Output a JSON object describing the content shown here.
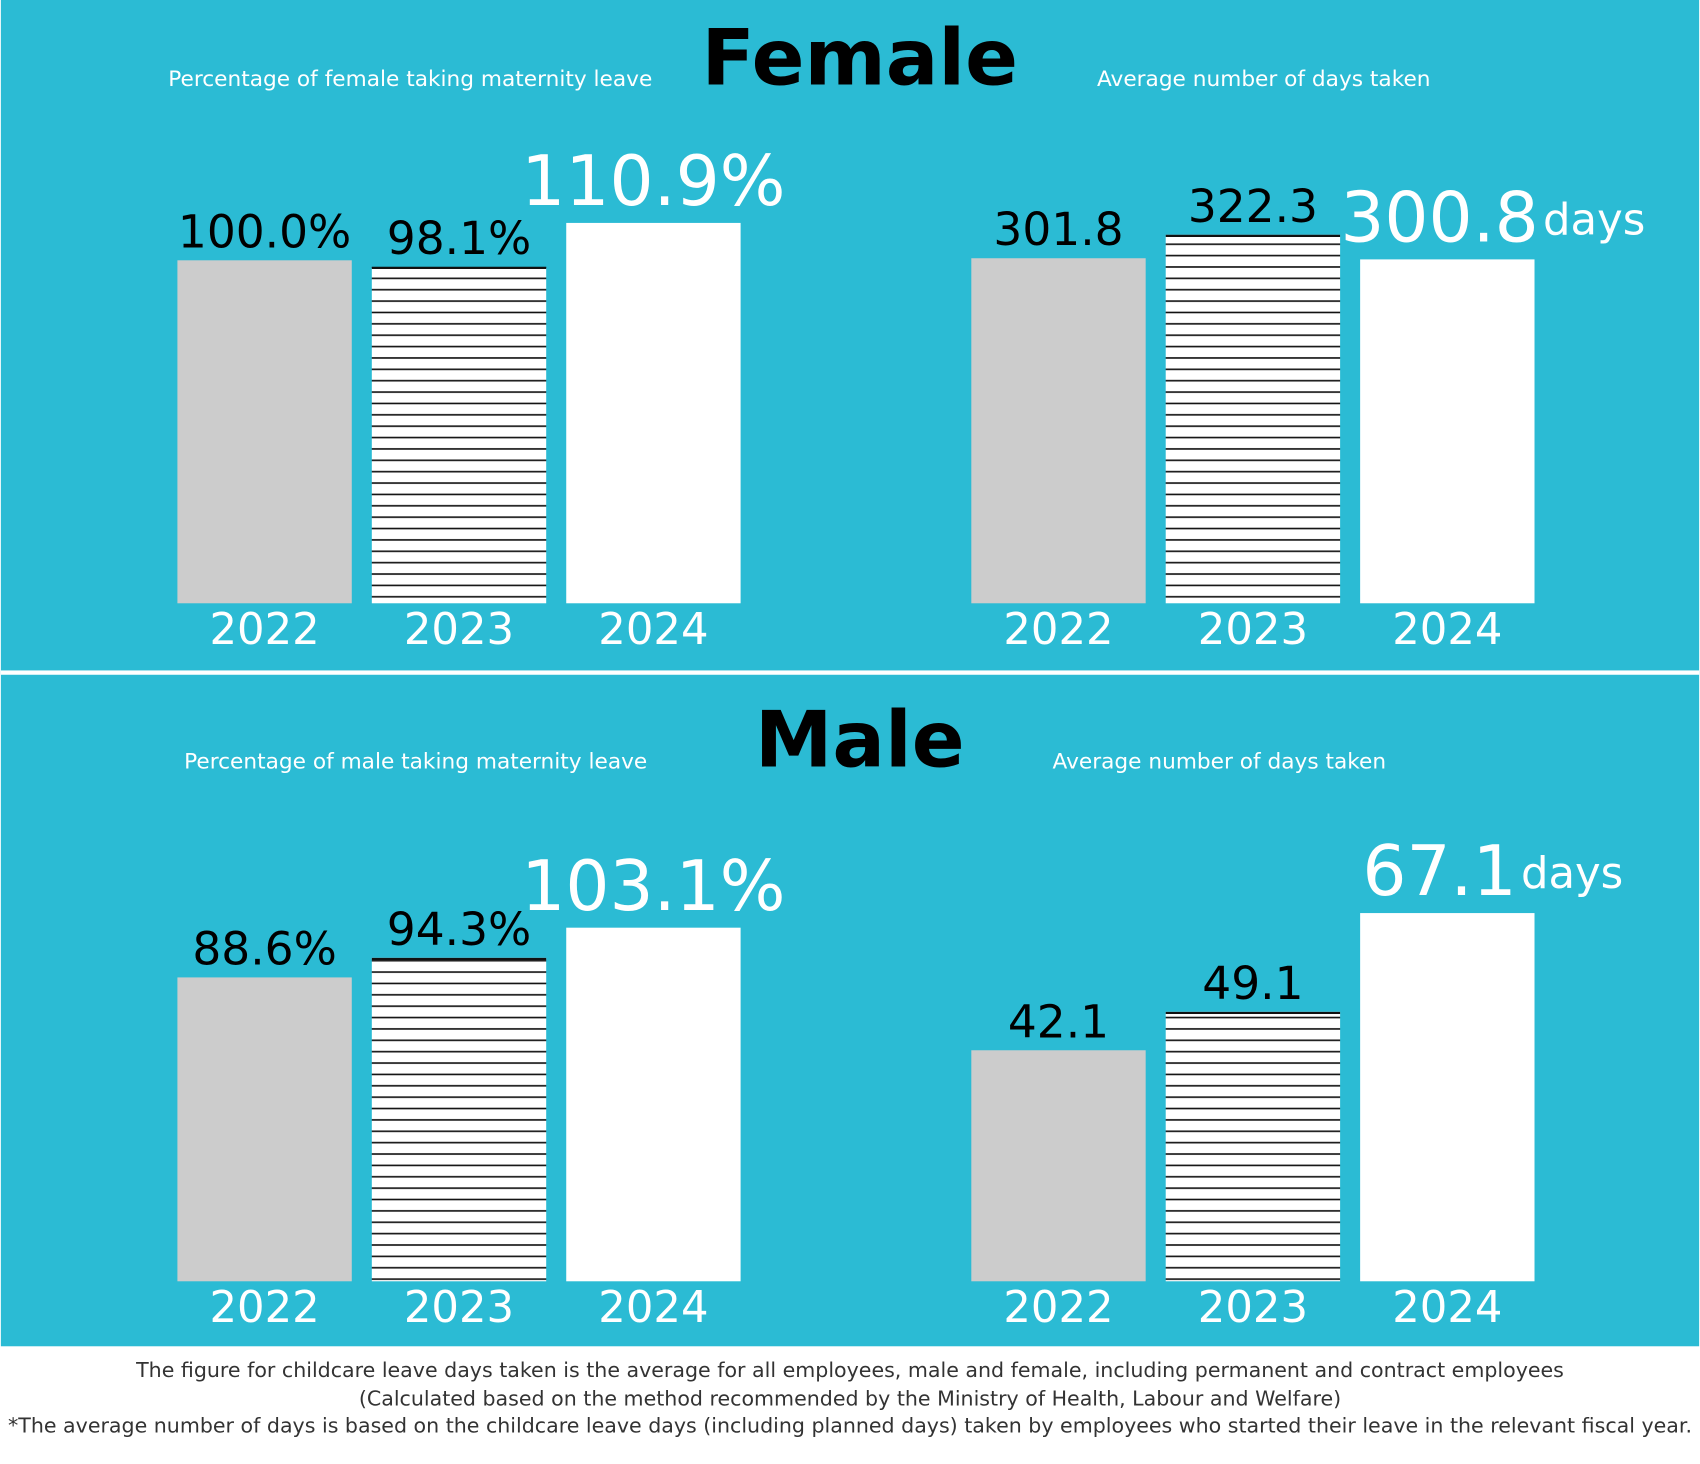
{
  "headings": [
    "Female",
    "Male"
  ],
  "chart_data": [
    {
      "type": "bar",
      "title": "Percentage of female taking maternity leave",
      "categories": [
        "2022",
        "2023",
        "2024"
      ],
      "values": [
        100.0,
        98.1,
        110.9
      ],
      "value_labels": [
        "100.0%",
        "98.1%",
        "110.9%"
      ],
      "ylim": [
        0,
        120
      ],
      "colors": [
        "#cccccc",
        "#ffffff",
        "#ffffff"
      ],
      "hatch": [
        false,
        true,
        false
      ]
    },
    {
      "type": "bar",
      "title": "Average number of days taken",
      "categories": [
        "2022",
        "2023",
        "2024"
      ],
      "values": [
        301.8,
        322.3,
        300.8
      ],
      "unit": "days",
      "ylim": [
        0,
        360
      ],
      "colors": [
        "#cccccc",
        "#ffffff",
        "#ffffff"
      ],
      "hatch": [
        false,
        true,
        false
      ]
    },
    {
      "type": "bar",
      "title": "Percentage of male taking maternity leave",
      "categories": [
        "2022",
        "2023",
        "2024"
      ],
      "values": [
        88.6,
        94.3,
        103.1
      ],
      "value_labels": [
        "88.6%",
        "94.3%",
        "103.1%"
      ],
      "ylim": [
        0,
        120
      ],
      "colors": [
        "#cccccc",
        "#ffffff",
        "#ffffff"
      ],
      "hatch": [
        false,
        true,
        false
      ]
    },
    {
      "type": "bar",
      "title": "Average number of days taken",
      "categories": [
        "2022",
        "2023",
        "2024"
      ],
      "values": [
        42.1,
        49.1,
        67.1
      ],
      "unit": "days",
      "ylim": [
        0,
        75
      ],
      "colors": [
        "#cccccc",
        "#ffffff",
        "#ffffff"
      ],
      "hatch": [
        false,
        true,
        false
      ]
    }
  ],
  "footnote": [
    "The figure for childcare leave days taken is the average for all employees, male and female, including permanent and contract employees",
    "(Calculated based on the method recommended by the Ministry of Health, Labour and Welfare)",
    "*The average number of days is based on the childcare leave days (including planned days) taken by employees who started their leave in the relevant fiscal year."
  ]
}
